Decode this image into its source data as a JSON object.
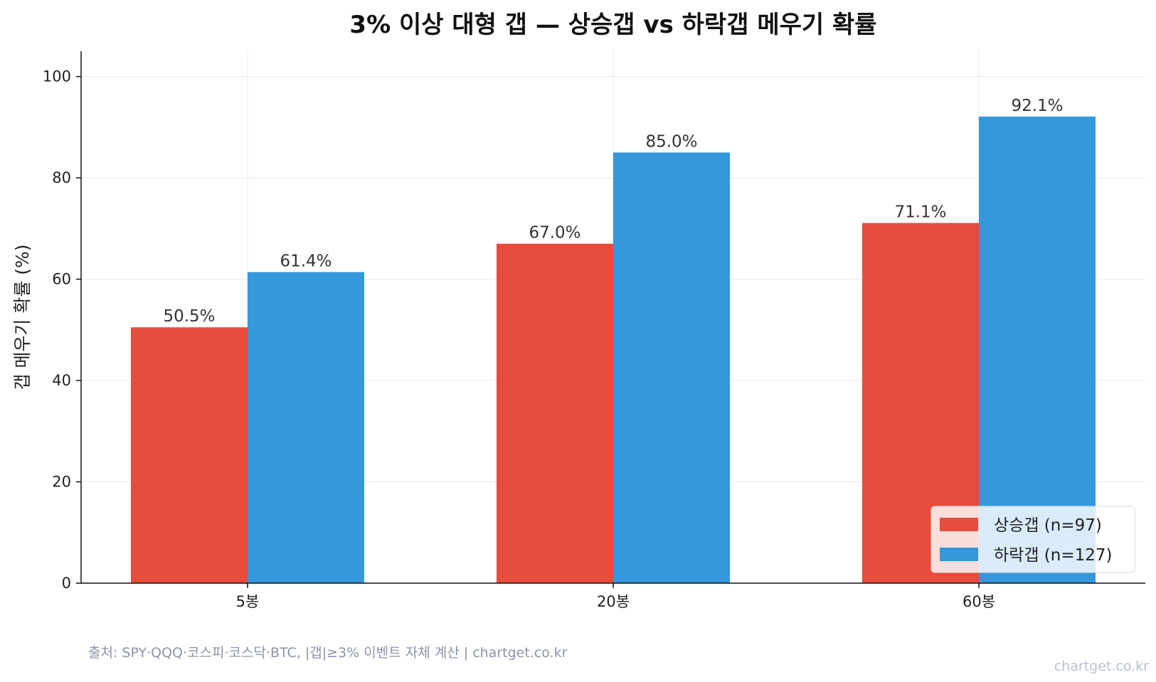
{
  "chart_data": {
    "type": "bar",
    "title": "3% 이상 대형 갭 — 상승갭 vs 하락갭 메우기 확률",
    "xlabel": "",
    "ylabel": "갭 메우기 확률 (%)",
    "ylim": [
      0,
      105
    ],
    "yticks": [
      "0",
      "20",
      "40",
      "60",
      "80",
      "100"
    ],
    "categories": [
      "5봉",
      "20봉",
      "60봉"
    ],
    "series": [
      {
        "name": "상승갭 (n=97)",
        "values": [
          50.5,
          67.0,
          71.1
        ],
        "labels": [
          "50.5%",
          "67.0%",
          "71.1%"
        ],
        "color": "#e74c3c"
      },
      {
        "name": "하락갭 (n=127)",
        "values": [
          61.4,
          85.0,
          92.1
        ],
        "labels": [
          "61.4%",
          "85.0%",
          "92.1%"
        ],
        "color": "#3498db"
      }
    ],
    "grid": true,
    "legend_position": "lower-right"
  },
  "source_note": "출처: SPY·QQQ·코스피·코스닥·BTC, |갭|≥3% 이벤트 자체 계산 | chartget.co.kr",
  "watermark": "chartget.co.kr"
}
